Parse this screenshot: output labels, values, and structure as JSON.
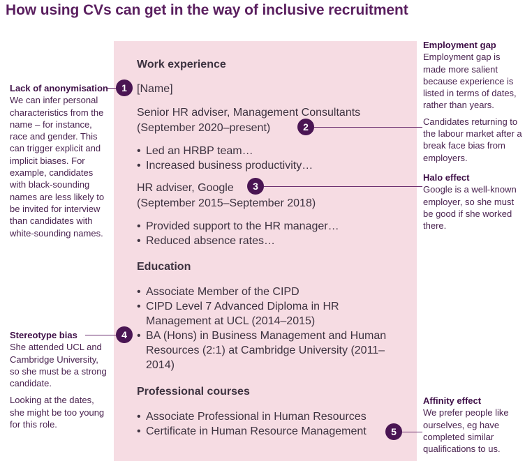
{
  "title": "How using CVs can get in the way of inclusive recruitment",
  "cv": {
    "work_heading": "Work experience",
    "name_placeholder": "[Name]",
    "job1_title": "Senior HR adviser, Management Consultants",
    "job1_dates": "(September 2020–present)",
    "job1_bullets": [
      "Led an HRBP team…",
      "Increased business productivity…"
    ],
    "job2_title": "HR adviser, Google",
    "job2_dates": "(September 2015–September 2018)",
    "job2_bullets": [
      "Provided support to the HR manager…",
      "Reduced absence rates…"
    ],
    "education_heading": "Education",
    "education_items": [
      "Associate Member of the CIPD",
      "CIPD Level 7 Advanced Diploma in HR Management at UCL (2014–2015)",
      "BA (Hons) in Business Management and Human Resources (2:1) at Cambridge University (2011–2014)"
    ],
    "courses_heading": "Professional courses",
    "courses_items": [
      "Associate Professional in Human Resources",
      "Certificate in Human Resource Management"
    ]
  },
  "annotations": {
    "anonymisation": {
      "number": "1",
      "heading": "Lack of anonymisation",
      "body": "We can infer personal characteristics from the name – for instance, race and gender. This can trigger explicit and implicit biases. For example, candidates with black-sounding names are less likely to be invited for interview than candidates with white-sounding names."
    },
    "employment_gap": {
      "number": "2",
      "heading": "Employment gap",
      "body": "Employment gap is made more salient because experience is listed in terms of dates, rather than years.",
      "body2": "Candidates returning to the labour market after a break face bias from employers."
    },
    "halo": {
      "number": "3",
      "heading": "Halo effect",
      "body": "Google is a well-known employer, so she must be good if she worked there."
    },
    "stereotype": {
      "number": "4",
      "heading": "Stereotype bias",
      "body": "She attended UCL and Cambridge University, so she must be a strong candidate.",
      "body2": "Looking at the dates, she might be too young for this role."
    },
    "affinity": {
      "number": "5",
      "heading": "Affinity effect",
      "body": "We prefer people like ourselves, eg have completed similar qualifications to us."
    }
  },
  "colors": {
    "title": "#5a1f5f",
    "panel": "#f6dce3",
    "marker": "#4a1553",
    "annotation_heading": "#3e0f47",
    "annotation_text": "#4a2350",
    "cv_text": "#3d3340"
  }
}
